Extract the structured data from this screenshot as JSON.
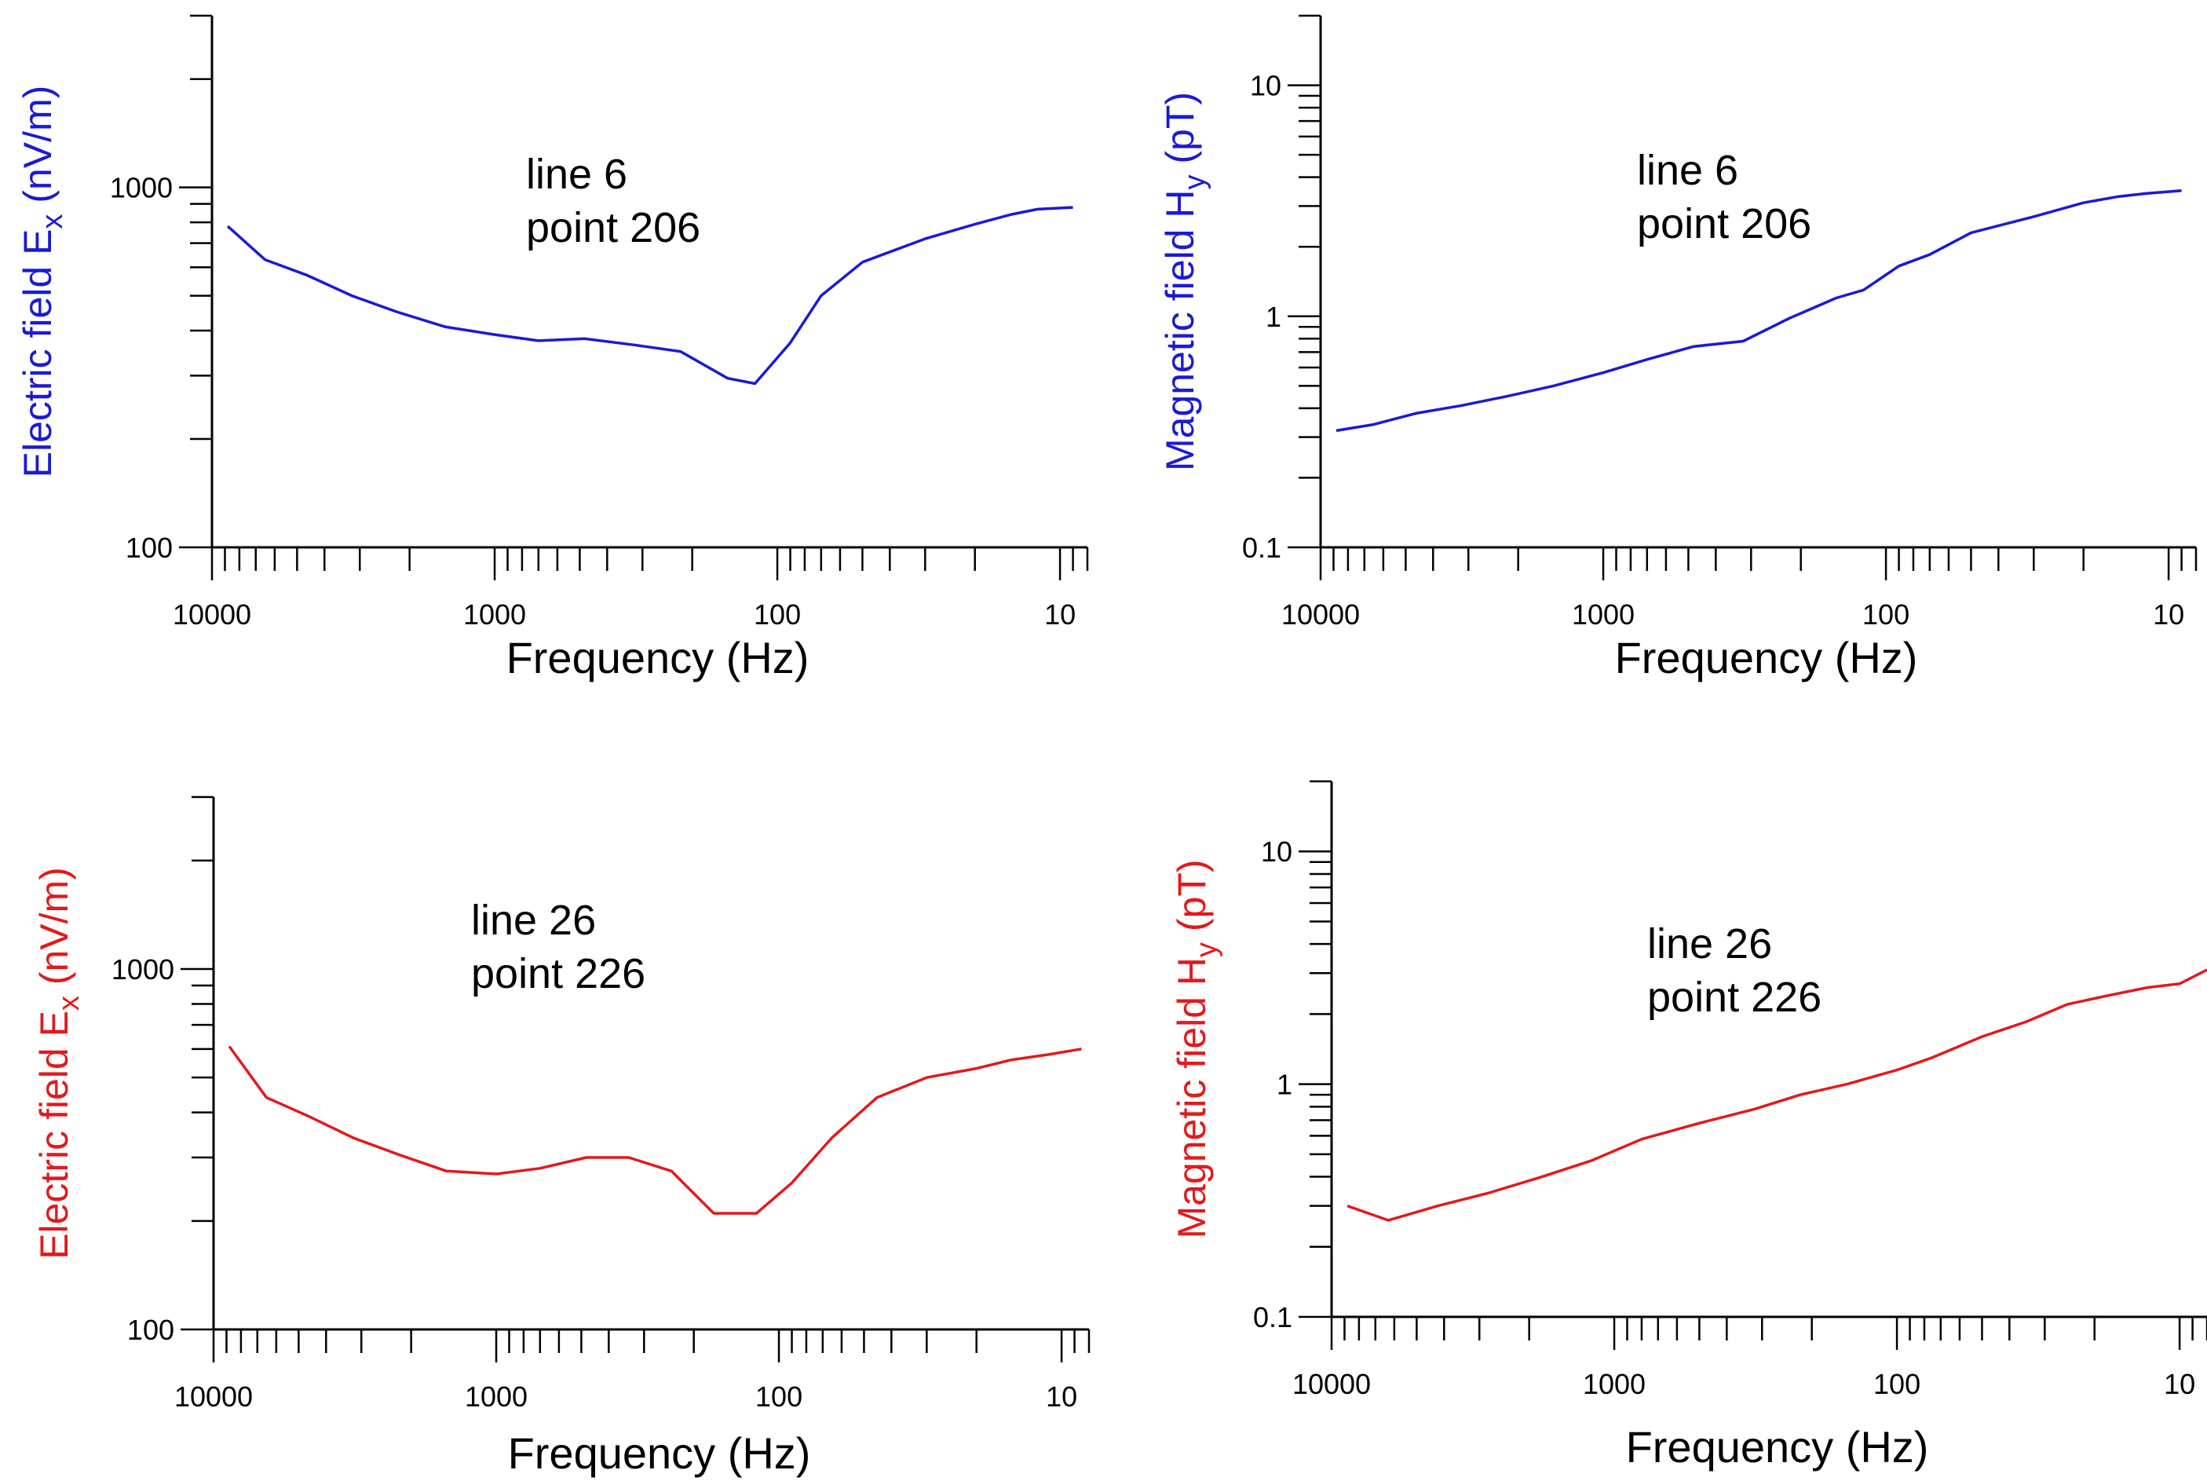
{
  "chart_data": [
    {
      "type": "line",
      "color": "#1a1ad6",
      "annotation": [
        "line 6",
        "point 206"
      ],
      "ylabel": {
        "prefix": "Electric field E",
        "sub": "x",
        "suffix": " (nV/m)"
      },
      "xlabel": "Frequency (Hz)",
      "xscale": "log",
      "yscale": "log",
      "x_reversed": true,
      "xlim": [
        10000,
        8
      ],
      "ylim": [
        100,
        3000
      ],
      "x_ticklabels": [
        "10000",
        "1000",
        "100",
        "10"
      ],
      "y_ticklabels": [
        "100",
        "1000"
      ],
      "series": [
        {
          "name": "Ex",
          "x": [
            8800,
            6500,
            4600,
            3200,
            2200,
            1500,
            1000,
            700,
            480,
            320,
            220,
            150,
            120,
            90,
            70,
            50,
            30,
            20,
            15,
            12,
            9
          ],
          "y": [
            780,
            630,
            570,
            500,
            450,
            410,
            390,
            375,
            380,
            365,
            350,
            295,
            285,
            370,
            500,
            620,
            720,
            790,
            840,
            870,
            880
          ]
        }
      ]
    },
    {
      "type": "line",
      "color": "#1a1ad6",
      "annotation": [
        "line 6",
        "point 206"
      ],
      "ylabel": {
        "prefix": "Magnetic field H",
        "sub": "y",
        "suffix": " (pT)"
      },
      "xlabel": "Frequency (Hz)",
      "xscale": "log",
      "yscale": "log",
      "x_reversed": true,
      "xlim": [
        10000,
        8
      ],
      "ylim": [
        0.1,
        20
      ],
      "x_ticklabels": [
        "10000",
        "1000",
        "100",
        "10"
      ],
      "y_ticklabels": [
        "0.1",
        "1",
        "10"
      ],
      "series": [
        {
          "name": "Hy",
          "x": [
            8800,
            6500,
            4600,
            3200,
            2200,
            1500,
            1000,
            700,
            480,
            320,
            220,
            150,
            120,
            90,
            70,
            50,
            30,
            20,
            15,
            12,
            9
          ],
          "y": [
            0.32,
            0.34,
            0.38,
            0.41,
            0.45,
            0.5,
            0.57,
            0.65,
            0.74,
            0.78,
            0.98,
            1.2,
            1.3,
            1.65,
            1.85,
            2.3,
            2.7,
            3.1,
            3.3,
            3.4,
            3.5
          ]
        }
      ]
    },
    {
      "type": "line",
      "color": "#e21a1a",
      "annotation": [
        "line 26",
        "point 226"
      ],
      "ylabel": {
        "prefix": "Electric field E",
        "sub": "x",
        "suffix": " (nV/m)"
      },
      "xlabel": "Frequency (Hz)",
      "xscale": "log",
      "yscale": "log",
      "x_reversed": true,
      "xlim": [
        10000,
        8
      ],
      "ylim": [
        100,
        3000
      ],
      "x_ticklabels": [
        "10000",
        "1000",
        "100",
        "10"
      ],
      "y_ticklabels": [
        "100",
        "1000"
      ],
      "series": [
        {
          "name": "Ex",
          "x": [
            8800,
            6500,
            4600,
            3200,
            2200,
            1500,
            1000,
            700,
            480,
            340,
            240,
            170,
            120,
            90,
            65,
            45,
            30,
            20,
            15,
            11,
            8.5
          ],
          "y": [
            610,
            440,
            390,
            340,
            305,
            275,
            270,
            280,
            300,
            300,
            275,
            210,
            210,
            255,
            340,
            440,
            500,
            530,
            560,
            580,
            600
          ]
        }
      ]
    },
    {
      "type": "line",
      "color": "#e21a1a",
      "annotation": [
        "line 26",
        "point 226"
      ],
      "ylabel": {
        "prefix": "Magnetic field H",
        "sub": "y",
        "suffix": " (pT)"
      },
      "xlabel": "Frequency (Hz)",
      "xscale": "log",
      "yscale": "log",
      "x_reversed": true,
      "xlim": [
        10000,
        8
      ],
      "ylim": [
        0.1,
        20
      ],
      "x_ticklabels": [
        "10000",
        "1000",
        "100",
        "10"
      ],
      "y_ticklabels": [
        "0.1",
        "1",
        "10"
      ],
      "series": [
        {
          "name": "Hy",
          "x": [
            8800,
            6300,
            4200,
            2800,
            1800,
            1200,
            800,
            500,
            320,
            220,
            150,
            100,
            75,
            50,
            35,
            25,
            18,
            13,
            10,
            8
          ],
          "y": [
            0.3,
            0.26,
            0.3,
            0.34,
            0.4,
            0.47,
            0.58,
            0.68,
            0.78,
            0.9,
            1.0,
            1.15,
            1.3,
            1.6,
            1.85,
            2.2,
            2.4,
            2.6,
            2.7,
            3.1
          ]
        }
      ]
    }
  ]
}
